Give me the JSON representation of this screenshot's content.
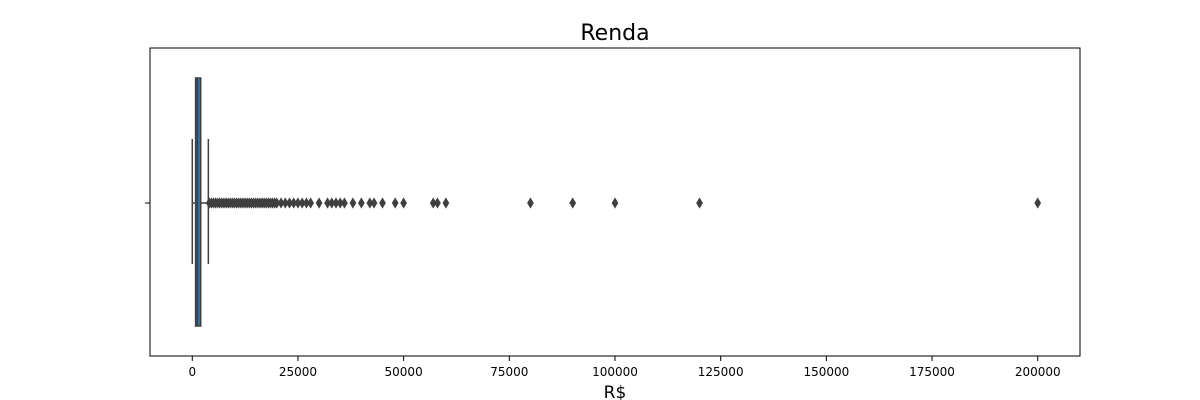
{
  "chart_data": {
    "type": "box",
    "title": "Renda",
    "xlabel": "R$",
    "ylabel": "",
    "orientation": "horizontal",
    "xlim": [
      -10000,
      210000
    ],
    "xticks": [
      0,
      25000,
      50000,
      75000,
      100000,
      125000,
      150000,
      175000,
      200000
    ],
    "grid": false,
    "legend": "none",
    "box": {
      "whisker_low": 0,
      "q1": 788,
      "median": 1200,
      "q3": 2000,
      "whisker_high": 3800
    },
    "outliers": [
      4000,
      4500,
      5000,
      5500,
      6000,
      6500,
      7000,
      7500,
      8000,
      8500,
      9000,
      9500,
      10000,
      10500,
      11000,
      11500,
      12000,
      12500,
      13000,
      13500,
      14000,
      14500,
      15000,
      15500,
      16000,
      16500,
      17000,
      17500,
      18000,
      18500,
      19000,
      19500,
      20000,
      21000,
      22000,
      23000,
      24000,
      25000,
      26000,
      27000,
      28000,
      30000,
      32000,
      33000,
      34000,
      35000,
      36000,
      38000,
      40000,
      42000,
      43000,
      45000,
      48000,
      50000,
      57000,
      58000,
      60000,
      80000,
      90000,
      100000,
      120000,
      200000
    ],
    "colors": {
      "box_fill": "#3274a1",
      "line": "#3f3f3f",
      "outlier": "#3f3f3f"
    }
  }
}
